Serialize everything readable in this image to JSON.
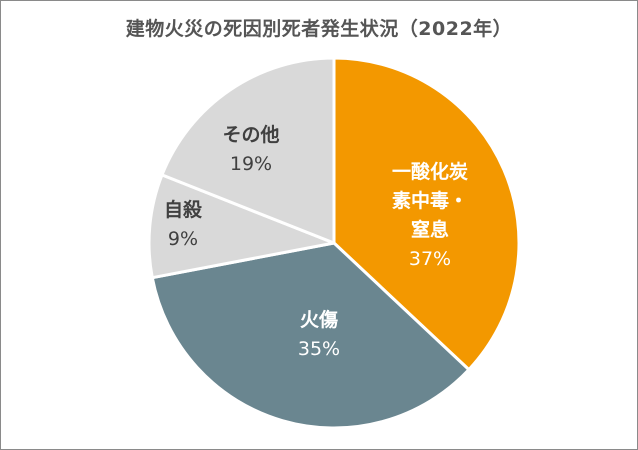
{
  "chart_data": {
    "type": "pie",
    "title": "建物火災の死因別死者発生状況（2022年）",
    "start_angle_deg": 0,
    "direction": "clockwise",
    "slices": [
      {
        "label_lines": [
          "一酸化炭",
          "素中毒・",
          "窒息"
        ],
        "value": 37,
        "value_label": "37%",
        "color": "#f39800",
        "text_color": "#ffffff"
      },
      {
        "label_lines": [
          "火傷"
        ],
        "value": 35,
        "value_label": "35%",
        "color": "#6a8690",
        "text_color": "#ffffff"
      },
      {
        "label_lines": [
          "自殺"
        ],
        "value": 9,
        "value_label": "9%",
        "color": "#d9d9d9",
        "text_color": "#404040"
      },
      {
        "label_lines": [
          "その他"
        ],
        "value": 19,
        "value_label": "19%",
        "color": "#d9d9d9",
        "text_color": "#404040"
      }
    ],
    "slice_border_color": "#ffffff"
  }
}
